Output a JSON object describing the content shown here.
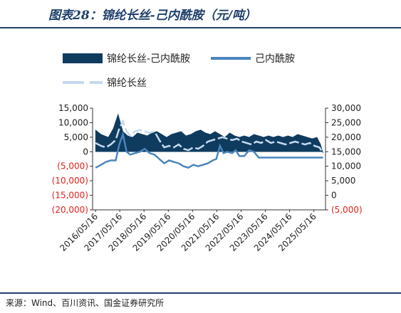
{
  "title": "图表28：锦纶长丝-己内酰胺（元/吨）",
  "source": "来源：Wind、百川资讯、国金证券研究所",
  "colors": {
    "spread": "#0f3b5f",
    "cpl": "#4a85bd",
    "filament": "#c5d9ee",
    "negative_tick": "#e0201b",
    "rule": "#1f3f6a"
  },
  "chart_data": {
    "type": "area",
    "x_tick_labels": [
      "2016/05/16",
      "2017/05/16",
      "2018/05/16",
      "2019/05/16",
      "2020/05/16",
      "2021/05/16",
      "2022/05/16",
      "2023/05/16",
      "2024/05/16",
      "2025/05/16"
    ],
    "x_range": [
      2016.25,
      2025.85
    ],
    "left_axis": {
      "ylim": [
        -20000,
        15000
      ],
      "tick_labels": [
        "15,000",
        "10,000",
        "5,000",
        "0",
        "(5,000)",
        "(10,000)",
        "(15,000)",
        "(20,000)"
      ],
      "tick_values": [
        15000,
        10000,
        5000,
        0,
        -5000,
        -10000,
        -15000,
        -20000
      ]
    },
    "right_axis": {
      "ylim": [
        -5000,
        30000
      ],
      "tick_labels": [
        "30,000",
        "25,000",
        "20,000",
        "15,000",
        "10,000",
        "5,000",
        "0",
        "(5,000)"
      ],
      "tick_values": [
        30000,
        25000,
        20000,
        15000,
        10000,
        5000,
        0,
        -5000
      ]
    },
    "series": [
      {
        "name": "锦纶长丝-己内酰胺",
        "type": "area",
        "axis": "left",
        "x": [
          2016.37,
          2016.6,
          2016.9,
          2017.1,
          2017.3,
          2017.5,
          2017.7,
          2017.9,
          2018.1,
          2018.3,
          2018.5,
          2018.7,
          2018.9,
          2019.1,
          2019.3,
          2019.5,
          2019.7,
          2019.9,
          2020.1,
          2020.3,
          2020.5,
          2020.7,
          2020.9,
          2021.1,
          2021.3,
          2021.5,
          2021.7,
          2021.9,
          2022.1,
          2022.3,
          2022.5,
          2022.7,
          2022.9,
          2023.1,
          2023.3,
          2023.5,
          2023.7,
          2023.9,
          2024.1,
          2024.3,
          2024.5,
          2024.7,
          2024.9,
          2025.1,
          2025.3,
          2025.5,
          2025.65,
          2025.75
        ],
        "values": [
          7500,
          6000,
          5000,
          8000,
          13000,
          7000,
          5500,
          5000,
          6500,
          6000,
          5500,
          6500,
          7000,
          6000,
          5000,
          6000,
          6500,
          7000,
          5500,
          6000,
          7000,
          7500,
          6500,
          6000,
          7000,
          6000,
          5000,
          6500,
          5500,
          5000,
          5500,
          5000,
          6000,
          5500,
          5000,
          5500,
          5000,
          5500,
          5000,
          5500,
          5000,
          6000,
          5500,
          5000,
          4500,
          5000,
          2500,
          -500
        ]
      },
      {
        "name": "己内酰胺",
        "type": "line",
        "axis": "right",
        "x": [
          2016.37,
          2016.6,
          2016.8,
          2017.0,
          2017.2,
          2017.35,
          2017.5,
          2017.65,
          2017.8,
          2018.0,
          2018.2,
          2018.4,
          2018.6,
          2018.8,
          2019.0,
          2019.2,
          2019.4,
          2019.6,
          2019.8,
          2020.0,
          2020.2,
          2020.4,
          2020.6,
          2020.8,
          2021.0,
          2021.2,
          2021.35,
          2021.5,
          2021.65,
          2021.8,
          2022.0,
          2022.15,
          2022.3,
          2022.5,
          2022.7,
          2022.9,
          2023.1,
          2023.3,
          2023.5,
          2023.7,
          2023.9,
          2024.1,
          2024.3,
          2024.5,
          2024.7,
          2024.9,
          2025.1,
          2025.3,
          2025.5,
          2025.75
        ],
        "values": [
          9500,
          10500,
          11500,
          12000,
          12000,
          17500,
          21000,
          15000,
          14000,
          14500,
          15000,
          16000,
          14500,
          14000,
          12500,
          11000,
          12000,
          11500,
          11000,
          10000,
          9500,
          10500,
          10000,
          10500,
          11000,
          12000,
          12500,
          17000,
          14500,
          15000,
          14500,
          15500,
          13500,
          13500,
          15500,
          15000,
          13000,
          13000,
          13000,
          13000,
          13000,
          13000,
          13000,
          13000,
          13000,
          13000,
          13000,
          13000,
          13000,
          13000
        ]
      },
      {
        "name": "锦纶长丝",
        "type": "line",
        "axis": "right",
        "x": [
          2016.37,
          2016.6,
          2016.8,
          2017.0,
          2017.2,
          2017.35,
          2017.5,
          2017.65,
          2017.8,
          2018.0,
          2018.2,
          2018.4,
          2018.6,
          2018.8,
          2019.0,
          2019.2,
          2019.4,
          2019.6,
          2019.8,
          2020.0,
          2020.2,
          2020.4,
          2020.6,
          2020.8,
          2021.0,
          2021.2,
          2021.4,
          2021.6,
          2021.8,
          2022.0,
          2022.2,
          2022.4,
          2022.6,
          2022.8,
          2023.0,
          2023.2,
          2023.4,
          2023.6,
          2023.8,
          2024.0,
          2024.2,
          2024.4,
          2024.6,
          2024.8,
          2025.0,
          2025.2,
          2025.4,
          2025.6,
          2025.75
        ],
        "values": [
          18000,
          17000,
          16500,
          17500,
          19000,
          23000,
          25500,
          22000,
          20500,
          22000,
          22500,
          22000,
          21500,
          22000,
          19000,
          16500,
          17000,
          16500,
          17500,
          16000,
          15500,
          16500,
          16000,
          17000,
          18500,
          19000,
          19500,
          20000,
          19500,
          19000,
          19500,
          18500,
          18000,
          17500,
          18500,
          18000,
          19000,
          18000,
          18500,
          18000,
          17500,
          18000,
          18500,
          18000,
          17500,
          18000,
          17000,
          16500,
          14500
        ]
      }
    ]
  }
}
